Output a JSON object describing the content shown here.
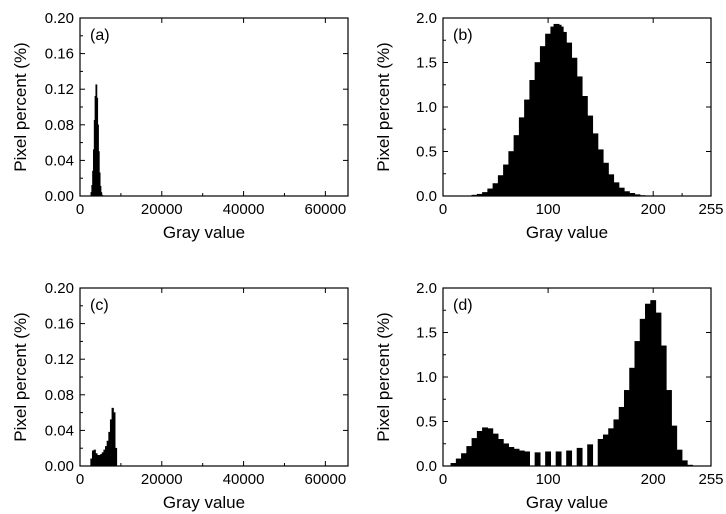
{
  "chart_data": [
    {
      "id": "a",
      "type": "bar",
      "panel_label": "(a)",
      "xlabel": "Gray value",
      "ylabel": "Pixel percent (%)",
      "xlim": [
        0,
        65535
      ],
      "ylim": [
        0,
        0.2
      ],
      "xticks": [
        0,
        20000,
        40000,
        60000
      ],
      "xtick_labels": [
        "0",
        "20000",
        "40000",
        "60000"
      ],
      "yticks": [
        0,
        0.04,
        0.08,
        0.12,
        0.16,
        0.2
      ],
      "ytick_labels": [
        "0.00",
        "0.04",
        "0.08",
        "0.12",
        "0.16",
        "0.20"
      ],
      "x": [
        2600,
        2800,
        3000,
        3200,
        3400,
        3600,
        3800,
        4000,
        4200,
        4400,
        4600,
        4800,
        5000,
        5200,
        5400,
        5600
      ],
      "values": [
        0.0,
        0.004,
        0.012,
        0.028,
        0.052,
        0.085,
        0.112,
        0.125,
        0.11,
        0.08,
        0.05,
        0.026,
        0.011,
        0.004,
        0.001,
        0.0
      ]
    },
    {
      "id": "b",
      "type": "bar",
      "panel_label": "(b)",
      "xlabel": "Gray value",
      "ylabel": "Pixel percent (%)",
      "xlim": [
        0,
        255
      ],
      "ylim": [
        0,
        2.0
      ],
      "xticks": [
        0,
        100,
        200,
        255
      ],
      "xtick_labels": [
        "0",
        "100",
        "200",
        "255"
      ],
      "yticks": [
        0,
        0.5,
        1.0,
        1.5,
        2.0
      ],
      "ytick_labels": [
        "0.0",
        "0.5",
        "1.0",
        "1.5",
        "2.0"
      ],
      "x": [
        30,
        35,
        40,
        45,
        50,
        55,
        60,
        65,
        70,
        75,
        80,
        85,
        90,
        95,
        100,
        105,
        108,
        110,
        112,
        115,
        120,
        125,
        130,
        135,
        140,
        145,
        150,
        155,
        160,
        165,
        170,
        175,
        180,
        185,
        190
      ],
      "values": [
        0.01,
        0.02,
        0.04,
        0.08,
        0.14,
        0.23,
        0.35,
        0.5,
        0.68,
        0.88,
        1.08,
        1.3,
        1.5,
        1.68,
        1.82,
        1.9,
        1.93,
        1.92,
        1.9,
        1.84,
        1.72,
        1.55,
        1.34,
        1.12,
        0.9,
        0.7,
        0.52,
        0.37,
        0.24,
        0.15,
        0.09,
        0.05,
        0.03,
        0.015,
        0.005
      ]
    },
    {
      "id": "c",
      "type": "bar",
      "panel_label": "(c)",
      "xlabel": "Gray value",
      "ylabel": "Pixel percent (%)",
      "xlim": [
        0,
        65535
      ],
      "ylim": [
        0,
        0.2
      ],
      "xticks": [
        0,
        20000,
        40000,
        60000
      ],
      "xtick_labels": [
        "0",
        "20000",
        "40000",
        "60000"
      ],
      "yticks": [
        0,
        0.04,
        0.08,
        0.12,
        0.16,
        0.2
      ],
      "ytick_labels": [
        "0.00",
        "0.04",
        "0.08",
        "0.12",
        "0.16",
        "0.20"
      ],
      "x": [
        2400,
        2800,
        3200,
        3600,
        4000,
        4400,
        4800,
        5200,
        5600,
        6000,
        6400,
        6800,
        7200,
        7600,
        8000,
        8400,
        8800,
        9200
      ],
      "values": [
        0.0,
        0.008,
        0.017,
        0.018,
        0.014,
        0.012,
        0.012,
        0.013,
        0.015,
        0.018,
        0.022,
        0.028,
        0.038,
        0.052,
        0.065,
        0.06,
        0.02,
        0.0
      ]
    },
    {
      "id": "d",
      "type": "bar",
      "panel_label": "(d)",
      "xlabel": "Gray value",
      "ylabel": "Pixel percent (%)",
      "xlim": [
        0,
        255
      ],
      "ylim": [
        0,
        2.0
      ],
      "xticks": [
        0,
        100,
        200,
        255
      ],
      "xtick_labels": [
        "0",
        "100",
        "200",
        "255"
      ],
      "yticks": [
        0,
        0.5,
        1.0,
        1.5,
        2.0
      ],
      "ytick_labels": [
        "0.0",
        "0.5",
        "1.0",
        "1.5",
        "2.0"
      ],
      "x": [
        5,
        10,
        15,
        20,
        25,
        30,
        35,
        40,
        45,
        50,
        55,
        60,
        65,
        70,
        75,
        80,
        90,
        100,
        110,
        120,
        130,
        140,
        150,
        155,
        160,
        165,
        170,
        175,
        180,
        185,
        190,
        195,
        200,
        205,
        210,
        215,
        220,
        225,
        230,
        235
      ],
      "values": [
        0.0,
        0.03,
        0.08,
        0.14,
        0.22,
        0.31,
        0.39,
        0.43,
        0.42,
        0.36,
        0.3,
        0.25,
        0.21,
        0.19,
        0.17,
        0.16,
        0.15,
        0.16,
        0.16,
        0.17,
        0.2,
        0.24,
        0.3,
        0.35,
        0.42,
        0.52,
        0.66,
        0.85,
        1.1,
        1.4,
        1.65,
        1.82,
        1.86,
        1.72,
        1.35,
        0.85,
        0.45,
        0.18,
        0.06,
        0.01
      ]
    }
  ]
}
